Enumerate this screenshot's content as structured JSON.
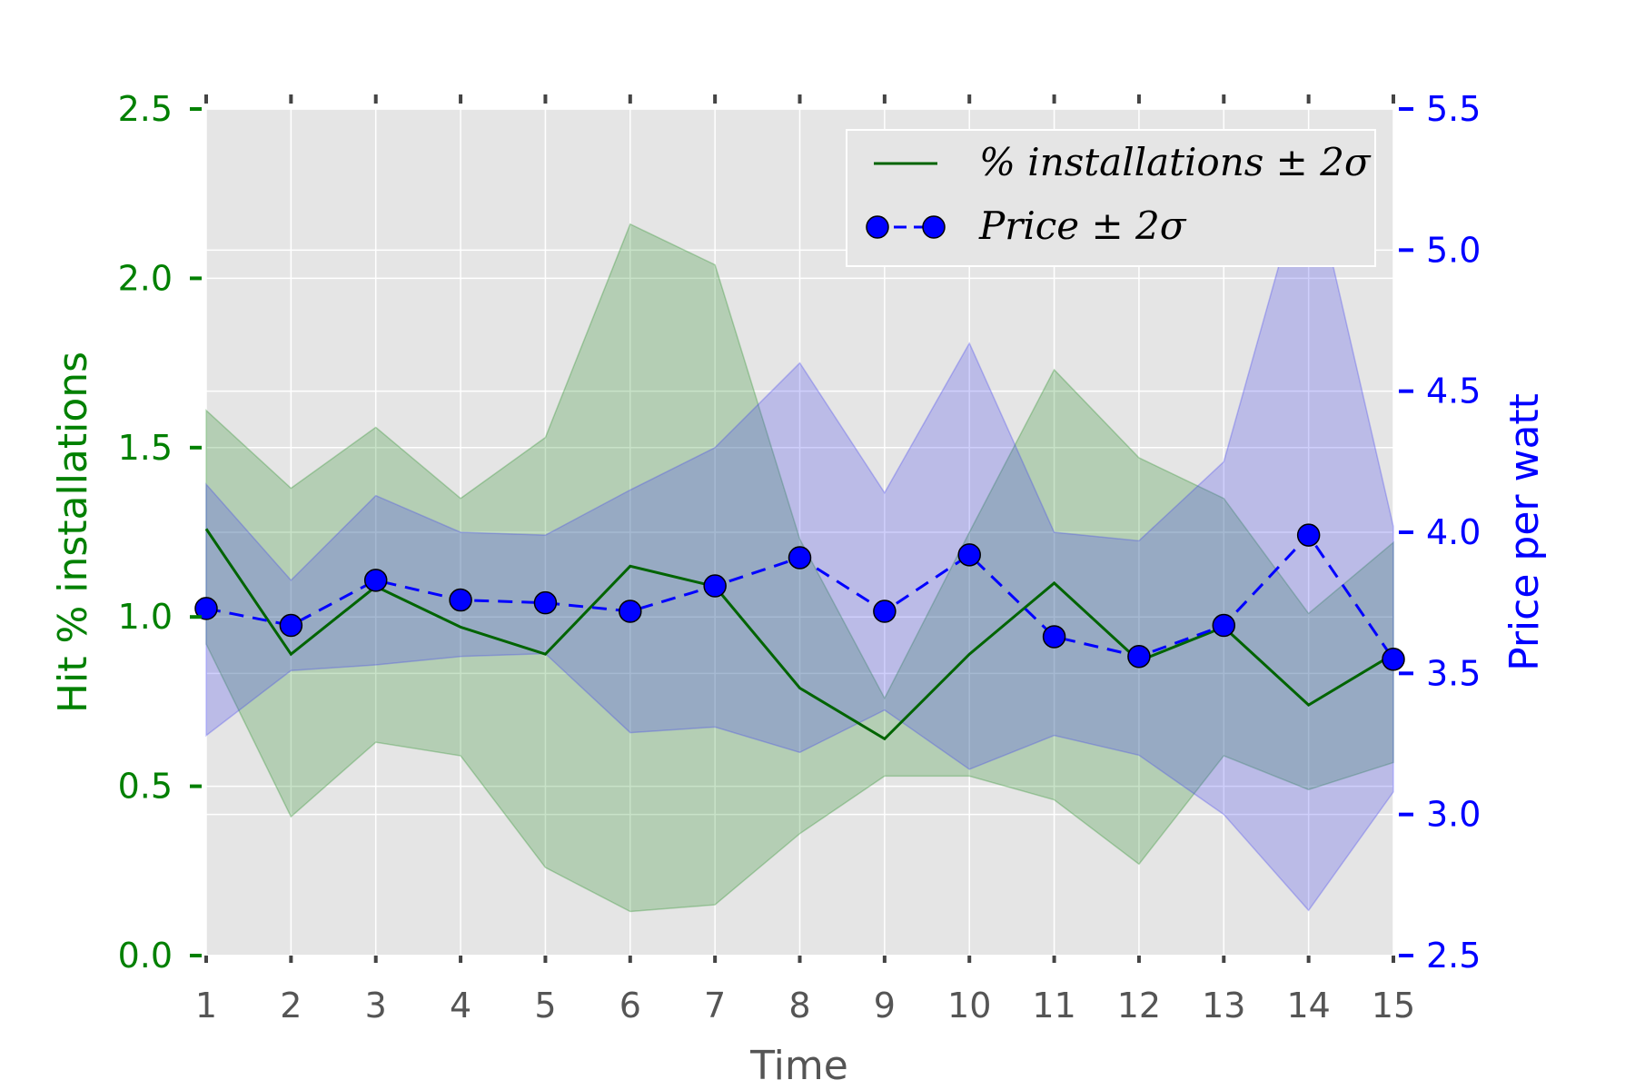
{
  "chart_data": {
    "type": "line",
    "xlabel": "Time",
    "ylabel_left": "Hit % installations",
    "ylabel_right": "Price per watt",
    "x": [
      1,
      2,
      3,
      4,
      5,
      6,
      7,
      8,
      9,
      10,
      11,
      12,
      13,
      14,
      15
    ],
    "xlim": [
      1,
      15
    ],
    "ylim_left": [
      0.0,
      2.5
    ],
    "ylim_right": [
      2.5,
      5.5
    ],
    "yticks_left": [
      "0.0",
      "0.5",
      "1.0",
      "1.5",
      "2.0",
      "2.5"
    ],
    "yticks_right": [
      "2.5",
      "3.0",
      "3.5",
      "4.0",
      "4.5",
      "5.0",
      "5.5"
    ],
    "grid": true,
    "legend_position": "top-right",
    "series": [
      {
        "name": "% installations ± 2σ",
        "axis": "left",
        "color": "#006400",
        "band_color": "#228B22",
        "style": "solid",
        "values": [
          1.26,
          0.89,
          1.09,
          0.97,
          0.89,
          1.15,
          1.09,
          0.79,
          0.64,
          0.89,
          1.1,
          0.87,
          0.97,
          0.74,
          0.89
        ],
        "band_upper": [
          1.61,
          1.38,
          1.56,
          1.35,
          1.53,
          2.16,
          2.04,
          1.23,
          0.76,
          1.25,
          1.73,
          1.47,
          1.35,
          1.01,
          1.22
        ],
        "band_lower": [
          0.92,
          0.41,
          0.63,
          0.59,
          0.26,
          0.13,
          0.15,
          0.36,
          0.53,
          0.53,
          0.46,
          0.27,
          0.59,
          0.49,
          0.57
        ]
      },
      {
        "name": "Price ± 2σ",
        "axis": "right",
        "color": "#0000ff",
        "band_color": "#4040ee",
        "style": "dashed-markers",
        "values": [
          3.73,
          3.67,
          3.83,
          3.76,
          3.75,
          3.72,
          3.81,
          3.91,
          3.72,
          3.92,
          3.63,
          3.56,
          3.67,
          3.99,
          3.55
        ],
        "band_upper": [
          4.17,
          3.83,
          4.13,
          4.0,
          3.99,
          4.15,
          4.3,
          4.6,
          4.14,
          4.67,
          4.0,
          3.97,
          4.25,
          5.32,
          4.02
        ],
        "band_lower": [
          3.28,
          3.51,
          3.53,
          3.56,
          3.57,
          3.29,
          3.31,
          3.22,
          3.37,
          3.16,
          3.28,
          3.21,
          3.0,
          2.66,
          3.08
        ]
      }
    ]
  }
}
